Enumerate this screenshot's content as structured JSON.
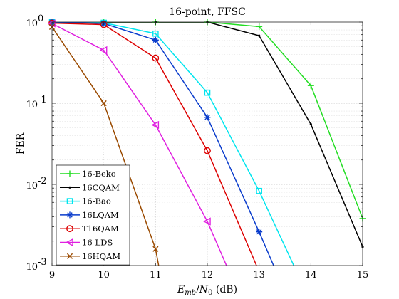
{
  "chart_data": {
    "type": "line",
    "title": "16-point, FFSC",
    "xlabel": "E_mb/N_0 (dB)",
    "ylabel": "FER",
    "xlim": [
      9,
      15
    ],
    "ylim": [
      0.001,
      1
    ],
    "yscale": "log",
    "grid": true,
    "legend_position": "bottom-left",
    "x_ticks": [
      9,
      10,
      11,
      12,
      13,
      14,
      15
    ],
    "x_tick_labels": [
      "9",
      "10",
      "11",
      "12",
      "13",
      "14",
      "15"
    ],
    "y_ticks": [
      {
        "mantissa": "10",
        "exp": "0",
        "value": 1
      },
      {
        "mantissa": "10",
        "exp": "-1",
        "value": 0.1
      },
      {
        "mantissa": "10",
        "exp": "-2",
        "value": 0.01
      },
      {
        "mantissa": "10",
        "exp": "-3",
        "value": 0.001
      }
    ],
    "series": [
      {
        "name": "16-Beko",
        "color": "#22dd22",
        "marker": "plus",
        "x": [
          9,
          10,
          11,
          12,
          13,
          14,
          15
        ],
        "y": [
          1,
          1,
          1,
          1,
          0.88,
          0.165,
          0.0038
        ]
      },
      {
        "name": "16CQAM",
        "color": "#000000",
        "marker": "point",
        "x": [
          9,
          10,
          11,
          12,
          13,
          14,
          15
        ],
        "y": [
          1,
          1,
          1,
          1,
          0.68,
          0.055,
          0.0017
        ]
      },
      {
        "name": "16-Bao",
        "color": "#00e5ee",
        "marker": "square",
        "x": [
          9,
          10,
          11,
          12,
          13,
          13.67
        ],
        "y": [
          1,
          0.98,
          0.72,
          0.135,
          0.0083,
          0.001
        ]
      },
      {
        "name": "16LQAM",
        "color": "#0a3ccc",
        "marker": "star",
        "x": [
          9,
          10,
          11,
          12,
          13,
          13.28
        ],
        "y": [
          1,
          0.96,
          0.6,
          0.067,
          0.0026,
          0.001
        ]
      },
      {
        "name": "T16QAM",
        "color": "#dd0000",
        "marker": "circle",
        "x": [
          9,
          10,
          11,
          12,
          12.95
        ],
        "y": [
          0.97,
          0.93,
          0.36,
          0.026,
          0.001
        ]
      },
      {
        "name": "16-LDS",
        "color": "#e020e0",
        "marker": "triangle-left",
        "x": [
          9,
          10,
          11,
          12,
          12.37
        ],
        "y": [
          0.96,
          0.45,
          0.054,
          0.0035,
          0.001
        ]
      },
      {
        "name": "16HQAM",
        "color": "#9a4a00",
        "marker": "x",
        "x": [
          9,
          10,
          11,
          11.06
        ],
        "y": [
          0.87,
          0.1,
          0.0016,
          0.001
        ]
      }
    ]
  }
}
